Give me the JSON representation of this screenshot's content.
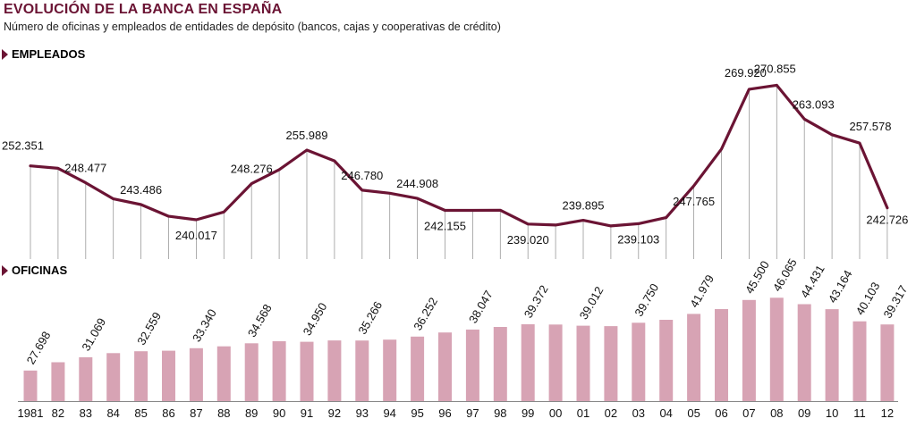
{
  "header": {
    "title": "EVOLUCIÓN DE LA BANCA EN ESPAÑA",
    "subtitle": "Número de oficinas y empleados de entidades de depósito (bancos, cajas y cooperativas de crédito)"
  },
  "sections": {
    "empleados": "EMPLEADOS",
    "oficinas": "OFICINAS"
  },
  "colors": {
    "line": "#6b1434",
    "bar": "#d7a3b4",
    "accent": "#6b1434"
  },
  "chart_data": [
    {
      "type": "line",
      "title": "EMPLEADOS",
      "categories": [
        "1981",
        "82",
        "83",
        "84",
        "85",
        "86",
        "87",
        "88",
        "89",
        "90",
        "91",
        "92",
        "93",
        "94",
        "95",
        "96",
        "97",
        "98",
        "99",
        "00",
        "01",
        "02",
        "03",
        "04",
        "05",
        "06",
        "07",
        "08",
        "09",
        "10",
        "11",
        "12"
      ],
      "values": [
        252351,
        251800,
        248477,
        244800,
        243486,
        240800,
        240017,
        241800,
        248276,
        251500,
        255989,
        253500,
        246780,
        246100,
        244908,
        242155,
        242155,
        242200,
        239020,
        238800,
        239895,
        238600,
        239103,
        240500,
        247765,
        256200,
        269920,
        270855,
        263093,
        259500,
        257578,
        242726
      ],
      "labels": [
        "252.351",
        "",
        "248.477",
        "",
        "243.486",
        "",
        "240.017",
        "",
        "248.276",
        "",
        "255.989",
        "",
        "246.780",
        "",
        "244.908",
        "242.155",
        "",
        "",
        "239.020",
        "",
        "239.895",
        "",
        "239.103",
        "",
        "247.765",
        "",
        "269.920",
        "270.855",
        "263.093",
        "",
        "257.578",
        "242.726"
      ],
      "ylim": [
        231000,
        274000
      ]
    },
    {
      "type": "bar",
      "title": "OFICINAS",
      "categories": [
        "1981",
        "82",
        "83",
        "84",
        "85",
        "86",
        "87",
        "88",
        "89",
        "90",
        "91",
        "92",
        "93",
        "94",
        "95",
        "96",
        "97",
        "98",
        "99",
        "00",
        "01",
        "02",
        "03",
        "04",
        "05",
        "06",
        "07",
        "08",
        "09",
        "10",
        "11",
        "12"
      ],
      "values": [
        27698,
        29800,
        31069,
        32100,
        32559,
        32700,
        33340,
        33800,
        34568,
        35100,
        34950,
        35300,
        35266,
        35500,
        36252,
        37300,
        38047,
        38700,
        39372,
        39300,
        39012,
        38900,
        39750,
        40500,
        41979,
        43200,
        45500,
        46065,
        44431,
        43164,
        40103,
        39317
      ],
      "labels": [
        "27.698",
        "",
        "31.069",
        "",
        "32.559",
        "",
        "33.340",
        "",
        "34.568",
        "",
        "34.950",
        "",
        "35.266",
        "",
        "36.252",
        "",
        "38.047",
        "",
        "39.372",
        "",
        "39.012",
        "",
        "39.750",
        "",
        "41.979",
        "",
        "45.500",
        "46.065",
        "44.431",
        "43.164",
        "40.103",
        "39.317"
      ],
      "ylim": [
        20000,
        46800
      ]
    }
  ]
}
